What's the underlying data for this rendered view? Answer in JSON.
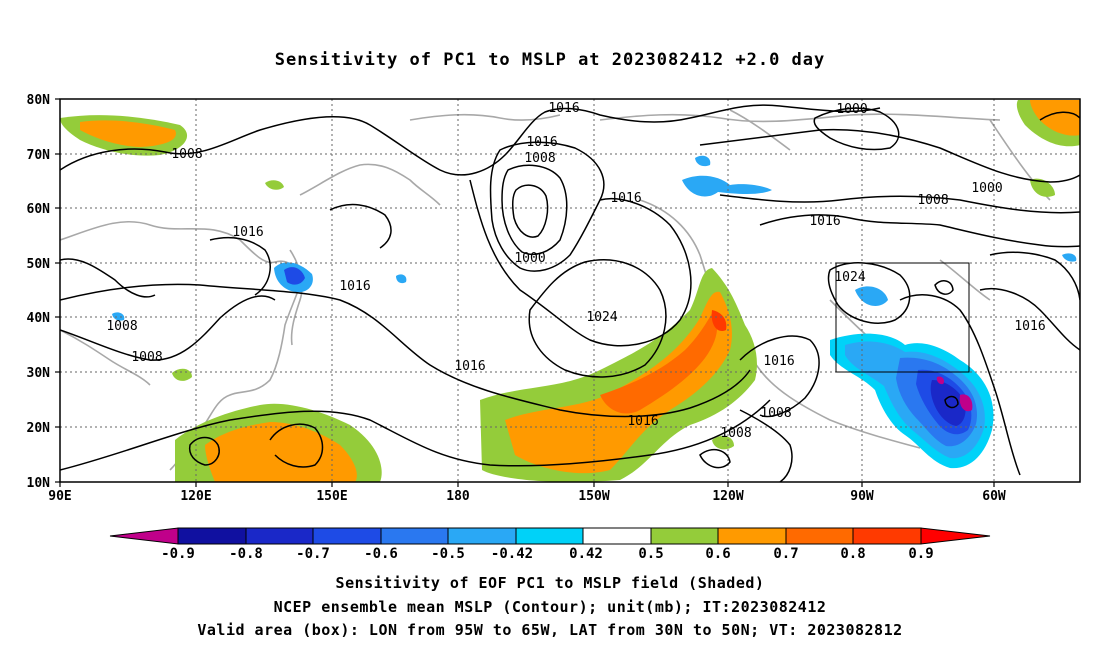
{
  "title": "Sensitivity of PC1 to MSLP at 2023082412 +2.0 day",
  "lat_labels": [
    "80N",
    "70N",
    "60N",
    "50N",
    "40N",
    "30N",
    "20N",
    "10N"
  ],
  "lon_labels": [
    "90E",
    "120E",
    "150E",
    "180",
    "150W",
    "120W",
    "90W",
    "60W"
  ],
  "contour_labels": [
    {
      "text": "1016"
    },
    {
      "text": "1000"
    },
    {
      "text": "1008"
    },
    {
      "text": "1016"
    },
    {
      "text": "1008"
    },
    {
      "text": "1016"
    },
    {
      "text": "1000"
    },
    {
      "text": "1016"
    },
    {
      "text": "1008"
    },
    {
      "text": "1016"
    },
    {
      "text": "1000"
    },
    {
      "text": "1016"
    },
    {
      "text": "1024"
    },
    {
      "text": "1024"
    },
    {
      "text": "1016"
    },
    {
      "text": "1008"
    },
    {
      "text": "1008"
    },
    {
      "text": "1016"
    },
    {
      "text": "1016"
    },
    {
      "text": "1008"
    },
    {
      "text": "1016"
    },
    {
      "text": "1008"
    }
  ],
  "colorbar": {
    "labels": [
      "-0.9",
      "-0.8",
      "-0.7",
      "-0.6",
      "-0.5",
      "-0.42",
      "0.42",
      "0.5",
      "0.6",
      "0.7",
      "0.8",
      "0.9"
    ],
    "colors": [
      "#c0008a",
      "#1010a0",
      "#1a28c8",
      "#1e4be6",
      "#2a78f0",
      "#2aa8f5",
      "#00d2f8",
      "#ffffff",
      "#94cc3a",
      "#ff9a00",
      "#ff6a00",
      "#ff3a00",
      "#ff0000",
      "#f7a0c8"
    ]
  },
  "valid_box": {
    "lon": [
      "95W",
      "65W"
    ],
    "lat": [
      "30N",
      "50N"
    ]
  },
  "captions": [
    "Sensitivity of EOF PC1 to MSLP field (Shaded)",
    "NCEP ensemble mean MSLP (Contour); unit(mb); IT:2023082412",
    "Valid area (box): LON from 95W to 65W, LAT from 30N to 50N; VT: 2023082812"
  ]
}
